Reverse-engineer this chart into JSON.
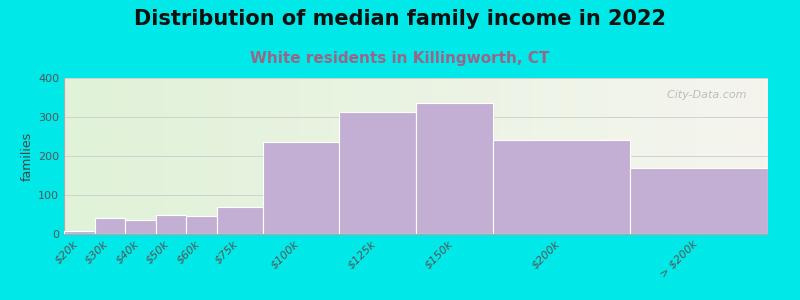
{
  "title": "Distribution of median family income in 2022",
  "subtitle": "White residents in Killingworth, CT",
  "ylabel": "families",
  "background_color": "#00e8e8",
  "bar_color": "#c4afd4",
  "bar_edge_color": "#ffffff",
  "categories": [
    "$20k",
    "$30k",
    "$40k",
    "$50k",
    "$60k",
    "$75k",
    "$100k",
    "$125k",
    "$150k",
    "$200k",
    "> $200k"
  ],
  "values": [
    8,
    40,
    35,
    50,
    47,
    68,
    235,
    312,
    335,
    242,
    168
  ],
  "left_edges": [
    0,
    10,
    20,
    30,
    40,
    50,
    65,
    90,
    115,
    140,
    185
  ],
  "widths": [
    10,
    10,
    10,
    10,
    10,
    15,
    25,
    25,
    25,
    45,
    45
  ],
  "ylim": [
    0,
    400
  ],
  "yticks": [
    0,
    100,
    200,
    300,
    400
  ],
  "title_fontsize": 15,
  "subtitle_fontsize": 11,
  "subtitle_color": "#996688",
  "watermark": "  City-Data.com",
  "ylabel_fontsize": 9,
  "tick_fontsize": 8
}
